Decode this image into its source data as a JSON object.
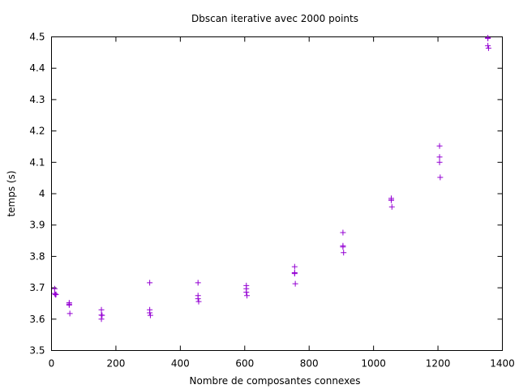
{
  "chart_data": {
    "type": "scatter",
    "title": "Dbscan iterative avec 2000 points",
    "xlabel": "Nombre de composantes connexes",
    "ylabel": "temps (s)",
    "xlim": [
      0,
      1400
    ],
    "ylim": [
      3.5,
      4.5
    ],
    "xticks": [
      0,
      200,
      400,
      600,
      800,
      1000,
      1200,
      1400
    ],
    "yticks": [
      3.5,
      3.6,
      3.7,
      3.8,
      3.9,
      4.0,
      4.1,
      4.2,
      4.3,
      4.4,
      4.5
    ],
    "xtick_labels": [
      "0",
      "200",
      "400",
      "600",
      "800",
      "1000",
      "1200",
      "1400"
    ],
    "ytick_labels": [
      "3.5",
      "3.6",
      "3.7",
      "3.8",
      "3.9",
      "4",
      "4.1",
      "4.2",
      "4.3",
      "4.4",
      "4.5"
    ],
    "marker": "plus",
    "color": "#9400d3",
    "legend": "none",
    "grid": false,
    "series": [
      {
        "x": [
          10,
          10,
          12,
          14,
          55,
          55,
          55,
          57,
          155,
          155,
          155,
          157,
          305,
          305,
          305,
          307,
          455,
          455,
          455,
          457,
          605,
          605,
          605,
          607,
          755,
          755,
          755,
          757,
          905,
          905,
          905,
          907,
          1055,
          1055,
          1055,
          1057,
          1205,
          1205,
          1205,
          1207,
          1355,
          1355,
          1355,
          1357
        ],
        "y": [
          3.697,
          3.682,
          3.678,
          3.679,
          3.652,
          3.645,
          3.648,
          3.618,
          3.63,
          3.613,
          3.6,
          3.612,
          3.716,
          3.63,
          3.62,
          3.612,
          3.716,
          3.675,
          3.665,
          3.656,
          3.707,
          3.697,
          3.686,
          3.675,
          3.767,
          3.748,
          3.745,
          3.713,
          3.876,
          3.834,
          3.83,
          3.812,
          3.985,
          3.98,
          3.979,
          3.958,
          4.152,
          4.117,
          4.1,
          4.052,
          4.497,
          4.495,
          4.472,
          4.464
        ]
      }
    ]
  }
}
